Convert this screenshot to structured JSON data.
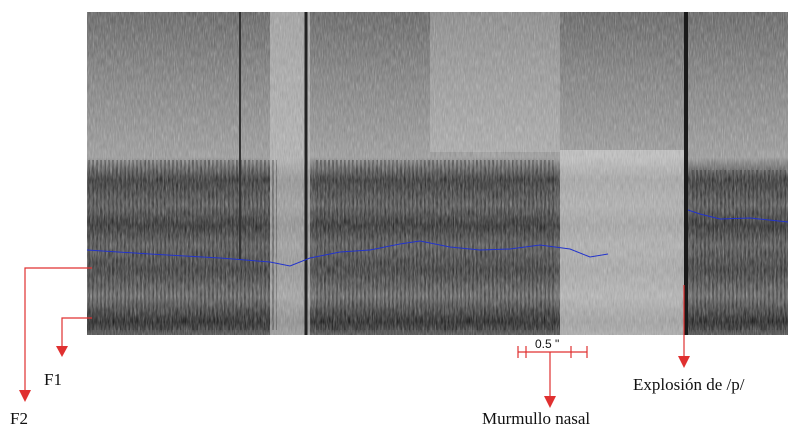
{
  "labels": {
    "f2": "F2",
    "f1": "F1",
    "scale": "0.5 \"",
    "nasal": "Murmullo nasal",
    "burst": "Explosión de /p/"
  }
}
